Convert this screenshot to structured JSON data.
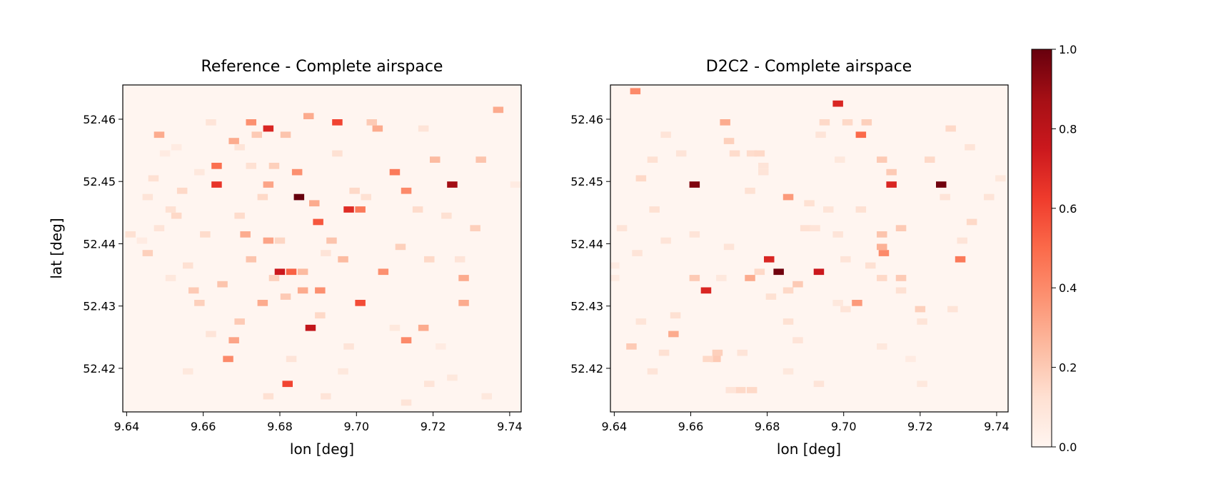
{
  "chart_data": [
    {
      "type": "heatmap",
      "title": "Reference - Complete airspace",
      "xlabel": "lon [deg]",
      "ylabel": "lat [deg]",
      "xticks": [
        "9.64",
        "9.66",
        "9.68",
        "9.70",
        "9.72",
        "9.74"
      ],
      "yticks": [
        "52.42",
        "52.43",
        "52.44",
        "52.45",
        "52.46"
      ],
      "xlim": [
        9.639,
        9.743
      ],
      "ylim": [
        52.413,
        52.4655
      ],
      "grid": false,
      "colormap": "Reds",
      "cell_size_deg": {
        "lon": 0.0027,
        "lat": 0.001
      },
      "cells_note": "each cell: [lon_center, lat_center, value]",
      "cells": [
        [
          9.641,
          52.4415,
          0.12
        ],
        [
          9.644,
          52.4405,
          0.06
        ],
        [
          9.6455,
          52.4385,
          0.18
        ],
        [
          9.647,
          52.4505,
          0.12
        ],
        [
          9.6485,
          52.4575,
          0.3
        ],
        [
          9.65,
          52.4545,
          0.06
        ],
        [
          9.6515,
          52.4455,
          0.12
        ],
        [
          9.653,
          52.4445,
          0.15
        ],
        [
          9.6545,
          52.4485,
          0.15
        ],
        [
          9.656,
          52.4365,
          0.12
        ],
        [
          9.6575,
          52.4325,
          0.2
        ],
        [
          9.659,
          52.4515,
          0.08
        ],
        [
          9.6605,
          52.4415,
          0.14
        ],
        [
          9.662,
          52.4595,
          0.1
        ],
        [
          9.6635,
          52.4525,
          0.48
        ],
        [
          9.6635,
          52.4495,
          0.65
        ],
        [
          9.665,
          52.4335,
          0.22
        ],
        [
          9.6665,
          52.4215,
          0.4
        ],
        [
          9.668,
          52.4565,
          0.3
        ],
        [
          9.6695,
          52.4445,
          0.14
        ],
        [
          9.671,
          52.4415,
          0.3
        ],
        [
          9.6725,
          52.4595,
          0.38
        ],
        [
          9.6725,
          52.4375,
          0.22
        ],
        [
          9.674,
          52.4575,
          0.2
        ],
        [
          9.6755,
          52.4305,
          0.3
        ],
        [
          9.677,
          52.4585,
          0.7
        ],
        [
          9.677,
          52.4495,
          0.32
        ],
        [
          9.677,
          52.4405,
          0.32
        ],
        [
          9.6785,
          52.4525,
          0.18
        ],
        [
          9.68,
          52.4355,
          0.75
        ],
        [
          9.6815,
          52.4575,
          0.22
        ],
        [
          9.682,
          52.4175,
          0.6
        ],
        [
          9.683,
          52.4355,
          0.52
        ],
        [
          9.6845,
          52.4515,
          0.38
        ],
        [
          9.685,
          52.4475,
          1.0
        ],
        [
          9.686,
          52.4325,
          0.3
        ],
        [
          9.6875,
          52.4605,
          0.3
        ],
        [
          9.688,
          52.4265,
          0.78
        ],
        [
          9.689,
          52.4465,
          0.3
        ],
        [
          9.69,
          52.4435,
          0.55
        ],
        [
          9.6905,
          52.4325,
          0.38
        ],
        [
          9.6935,
          52.4405,
          0.22
        ],
        [
          9.695,
          52.4595,
          0.6
        ],
        [
          9.6965,
          52.4375,
          0.25
        ],
        [
          9.698,
          52.4455,
          0.68
        ],
        [
          9.701,
          52.4455,
          0.45
        ],
        [
          9.701,
          52.4305,
          0.58
        ],
        [
          9.704,
          52.4595,
          0.2
        ],
        [
          9.707,
          52.4355,
          0.38
        ],
        [
          9.71,
          52.4515,
          0.45
        ],
        [
          9.7115,
          52.4395,
          0.18
        ],
        [
          9.713,
          52.4485,
          0.4
        ],
        [
          9.713,
          52.4245,
          0.4
        ],
        [
          9.7175,
          52.4265,
          0.3
        ],
        [
          9.725,
          52.4495,
          0.88
        ],
        [
          9.728,
          52.4305,
          0.3
        ],
        [
          9.728,
          52.4345,
          0.3
        ],
        [
          9.737,
          52.4615,
          0.3
        ],
        [
          9.7415,
          52.4495,
          0.06
        ],
        [
          9.698,
          52.4235,
          0.1
        ],
        [
          9.6965,
          52.4195,
          0.08
        ],
        [
          9.692,
          52.4155,
          0.1
        ],
        [
          9.677,
          52.4155,
          0.12
        ],
        [
          9.683,
          52.4215,
          0.1
        ],
        [
          9.71,
          52.4265,
          0.08
        ],
        [
          9.719,
          52.4175,
          0.1
        ],
        [
          9.722,
          52.4235,
          0.06
        ],
        [
          9.725,
          52.4185,
          0.08
        ],
        [
          9.734,
          52.4155,
          0.08
        ],
        [
          9.713,
          52.4145,
          0.1
        ],
        [
          9.668,
          52.4245,
          0.32
        ],
        [
          9.6695,
          52.4275,
          0.2
        ],
        [
          9.656,
          52.4195,
          0.08
        ],
        [
          9.662,
          52.4255,
          0.1
        ],
        [
          9.659,
          52.4305,
          0.18
        ],
        [
          9.6515,
          52.4345,
          0.08
        ],
        [
          9.6485,
          52.4425,
          0.1
        ],
        [
          9.6455,
          52.4475,
          0.1
        ],
        [
          9.653,
          52.4555,
          0.06
        ],
        [
          9.7325,
          52.4535,
          0.22
        ],
        [
          9.731,
          52.4425,
          0.18
        ],
        [
          9.727,
          52.4375,
          0.1
        ],
        [
          9.7235,
          52.4445,
          0.12
        ],
        [
          9.7205,
          52.4535,
          0.25
        ],
        [
          9.719,
          52.4375,
          0.15
        ],
        [
          9.7175,
          52.4585,
          0.1
        ],
        [
          9.716,
          52.4455,
          0.14
        ],
        [
          9.7055,
          52.4585,
          0.3
        ],
        [
          9.7025,
          52.4475,
          0.12
        ],
        [
          9.6995,
          52.4485,
          0.15
        ],
        [
          9.695,
          52.4545,
          0.12
        ],
        [
          9.692,
          52.4385,
          0.1
        ],
        [
          9.6905,
          52.4285,
          0.15
        ],
        [
          9.686,
          52.4355,
          0.25
        ],
        [
          9.6815,
          52.4315,
          0.2
        ],
        [
          9.68,
          52.4405,
          0.16
        ],
        [
          9.6785,
          52.4345,
          0.18
        ],
        [
          9.6755,
          52.4475,
          0.15
        ],
        [
          9.6725,
          52.4525,
          0.12
        ],
        [
          9.6695,
          52.4555,
          0.1
        ]
      ]
    },
    {
      "type": "heatmap",
      "title": "D2C2 - Complete airspace",
      "xlabel": "lon [deg]",
      "ylabel": "",
      "xticks": [
        "9.64",
        "9.66",
        "9.68",
        "9.70",
        "9.72",
        "9.74"
      ],
      "yticks": [
        "52.42",
        "52.43",
        "52.44",
        "52.45",
        "52.46"
      ],
      "xlim": [
        9.639,
        9.743
      ],
      "ylim": [
        52.413,
        52.4655
      ],
      "grid": false,
      "colormap": "Reds",
      "cell_size_deg": {
        "lon": 0.0027,
        "lat": 0.001
      },
      "cells_note": "each cell: [lon_center, lat_center, value]",
      "cells": [
        [
          9.6455,
          52.4645,
          0.4
        ],
        [
          9.6985,
          52.4625,
          0.7
        ],
        [
          9.669,
          52.4595,
          0.3
        ],
        [
          9.7045,
          52.4575,
          0.5
        ],
        [
          9.661,
          52.4495,
          0.95
        ],
        [
          9.7125,
          52.4495,
          0.7
        ],
        [
          9.7255,
          52.4495,
          0.98
        ],
        [
          9.683,
          52.4355,
          0.98
        ],
        [
          9.6805,
          52.4375,
          0.7
        ],
        [
          9.6935,
          52.4355,
          0.75
        ],
        [
          9.664,
          52.4325,
          0.7
        ],
        [
          9.7105,
          52.4385,
          0.4
        ],
        [
          9.7305,
          52.4375,
          0.45
        ],
        [
          9.6855,
          52.4475,
          0.35
        ],
        [
          9.7035,
          52.4305,
          0.35
        ],
        [
          9.6555,
          52.4255,
          0.3
        ],
        [
          9.6755,
          52.4345,
          0.3
        ],
        [
          9.661,
          52.4345,
          0.2
        ],
        [
          9.715,
          52.4345,
          0.2
        ],
        [
          9.71,
          52.4395,
          0.28
        ],
        [
          9.71,
          52.4415,
          0.22
        ],
        [
          9.7125,
          52.4515,
          0.2
        ],
        [
          9.6665,
          52.4215,
          0.2
        ],
        [
          9.6445,
          52.4235,
          0.2
        ],
        [
          9.653,
          52.4225,
          0.12
        ],
        [
          9.701,
          52.4595,
          0.15
        ],
        [
          9.706,
          52.4595,
          0.18
        ],
        [
          9.695,
          52.4595,
          0.15
        ],
        [
          9.715,
          52.4425,
          0.2
        ],
        [
          9.72,
          52.4295,
          0.18
        ],
        [
          9.728,
          52.4585,
          0.15
        ],
        [
          9.7335,
          52.4435,
          0.15
        ],
        [
          9.7225,
          52.4535,
          0.15
        ],
        [
          9.7265,
          52.4475,
          0.1
        ],
        [
          9.733,
          52.4555,
          0.1
        ],
        [
          9.738,
          52.4475,
          0.1
        ],
        [
          9.741,
          52.4505,
          0.08
        ],
        [
          9.71,
          52.4535,
          0.2
        ],
        [
          9.69,
          52.4425,
          0.12
        ],
        [
          9.6855,
          52.4325,
          0.15
        ],
        [
          9.688,
          52.4335,
          0.2
        ],
        [
          9.678,
          52.4355,
          0.15
        ],
        [
          9.67,
          52.4395,
          0.1
        ],
        [
          9.6735,
          52.4225,
          0.1
        ],
        [
          9.676,
          52.4165,
          0.15
        ],
        [
          9.673,
          52.4165,
          0.15
        ],
        [
          9.6705,
          52.4165,
          0.1
        ],
        [
          9.667,
          52.4225,
          0.18
        ],
        [
          9.6645,
          52.4215,
          0.15
        ],
        [
          9.656,
          52.4285,
          0.12
        ],
        [
          9.647,
          52.4275,
          0.1
        ],
        [
          9.65,
          52.4195,
          0.1
        ],
        [
          9.646,
          52.4385,
          0.1
        ],
        [
          9.642,
          52.4425,
          0.1
        ],
        [
          9.64,
          52.4365,
          0.06
        ],
        [
          9.64,
          52.4345,
          0.06
        ],
        [
          9.65,
          52.4535,
          0.12
        ],
        [
          9.647,
          52.4505,
          0.15
        ],
        [
          9.6575,
          52.4545,
          0.1
        ],
        [
          9.6535,
          52.4575,
          0.1
        ],
        [
          9.6505,
          52.4455,
          0.12
        ],
        [
          9.6535,
          52.4405,
          0.1
        ],
        [
          9.661,
          52.4415,
          0.1
        ],
        [
          9.6755,
          52.4485,
          0.12
        ],
        [
          9.676,
          52.4545,
          0.14
        ],
        [
          9.67,
          52.4565,
          0.18
        ],
        [
          9.6715,
          52.4545,
          0.14
        ],
        [
          9.679,
          52.4515,
          0.1
        ],
        [
          9.678,
          52.4545,
          0.15
        ],
        [
          9.679,
          52.4525,
          0.1
        ],
        [
          9.6925,
          52.4425,
          0.1
        ],
        [
          9.6985,
          52.4415,
          0.1
        ],
        [
          9.7005,
          52.4375,
          0.1
        ],
        [
          9.707,
          52.4365,
          0.12
        ],
        [
          9.71,
          52.4345,
          0.15
        ],
        [
          9.7005,
          52.4295,
          0.1
        ],
        [
          9.6985,
          52.4305,
          0.08
        ],
        [
          9.6855,
          52.4275,
          0.12
        ],
        [
          9.688,
          52.4245,
          0.1
        ],
        [
          9.681,
          52.4315,
          0.12
        ],
        [
          9.6935,
          52.4175,
          0.1
        ],
        [
          9.6855,
          52.4195,
          0.08
        ],
        [
          9.668,
          52.4345,
          0.08
        ],
        [
          9.691,
          52.4465,
          0.12
        ],
        [
          9.696,
          52.4455,
          0.1
        ],
        [
          9.7045,
          52.4455,
          0.12
        ],
        [
          9.699,
          52.4535,
          0.08
        ],
        [
          9.694,
          52.4575,
          0.1
        ],
        [
          9.7205,
          52.4275,
          0.1
        ],
        [
          9.7285,
          52.4295,
          0.1
        ],
        [
          9.7205,
          52.4175,
          0.08
        ],
        [
          9.7175,
          52.4215,
          0.06
        ],
        [
          9.71,
          52.4235,
          0.08
        ],
        [
          9.715,
          52.4325,
          0.12
        ],
        [
          9.731,
          52.4405,
          0.1
        ]
      ]
    }
  ],
  "colorbar": {
    "colormap": "Reds",
    "range": [
      0,
      1
    ],
    "ticks": [
      "0.0",
      "0.2",
      "0.4",
      "0.6",
      "0.8",
      "1.0"
    ]
  }
}
